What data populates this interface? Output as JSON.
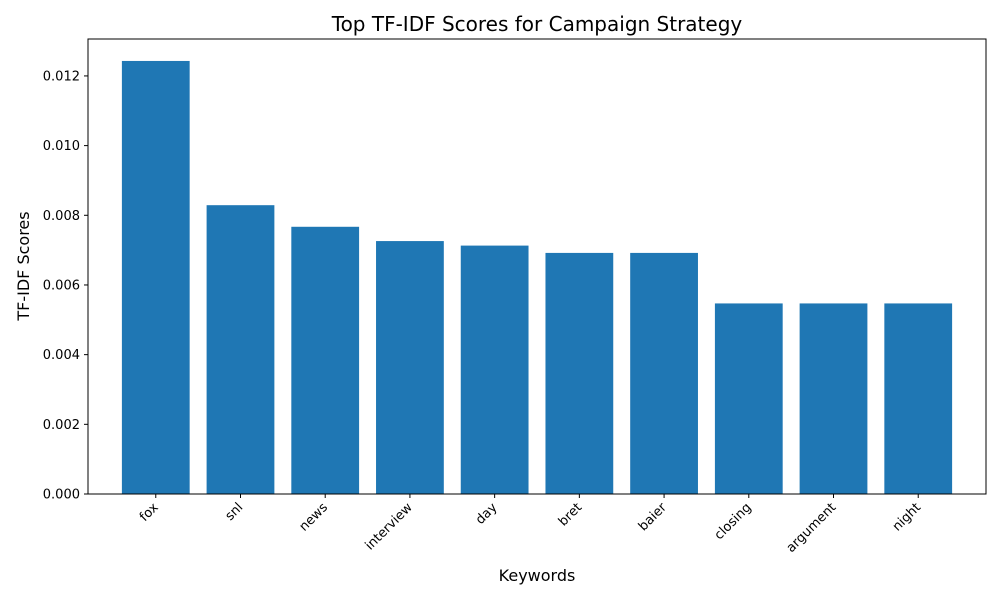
{
  "chart_data": {
    "type": "bar",
    "title": "Top TF-IDF Scores for Campaign Strategy",
    "xlabel": "Keywords",
    "ylabel": "TF-IDF Scores",
    "categories": [
      "fox",
      "snl",
      "news",
      "interview",
      "day",
      "bret",
      "baier",
      "closing",
      "argument",
      "night"
    ],
    "values": [
      0.01243,
      0.00829,
      0.00767,
      0.00726,
      0.00713,
      0.00692,
      0.00692,
      0.00547,
      0.00547,
      0.00547
    ],
    "ylim": [
      0,
      0.01306
    ],
    "yticks": [
      0.0,
      0.002,
      0.004,
      0.006,
      0.008,
      0.01,
      0.012
    ],
    "ytick_labels": [
      "0.000",
      "0.002",
      "0.004",
      "0.006",
      "0.008",
      "0.010",
      "0.012"
    ],
    "bar_color": "#1f77b4",
    "grid": false,
    "legend": "none"
  }
}
